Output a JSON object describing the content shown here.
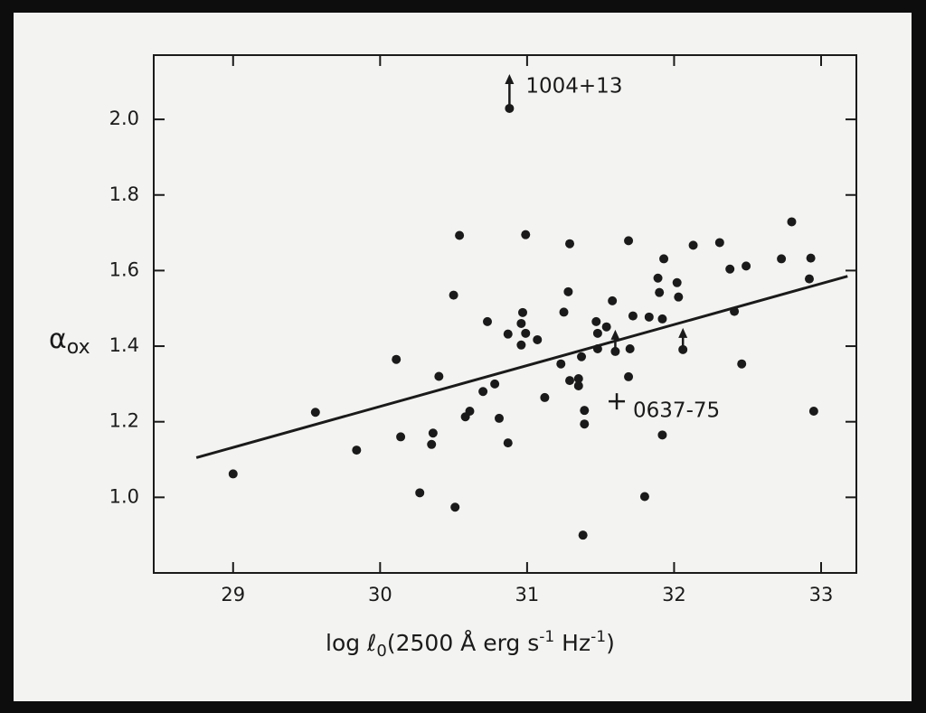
{
  "chart_data": {
    "type": "scatter",
    "ylabel": {
      "symbol": "α",
      "subscript": "ox"
    },
    "xlabel_parts": [
      "log ℓ",
      "0",
      "(2500 Å erg s",
      "-1",
      " Hz",
      "-1",
      ")"
    ],
    "xlim": [
      28.46,
      33.24
    ],
    "ylim": [
      0.8,
      2.17
    ],
    "xticks": [
      29,
      30,
      31,
      32,
      33
    ],
    "yticks": [
      {
        "value": 1.0,
        "label": "1.0"
      },
      1.2,
      1.4,
      1.6,
      1.8,
      {
        "value": 2.0,
        "label": "2.0"
      }
    ],
    "color": "#1a1a1a",
    "points": {
      "x": [
        29.0,
        29.56,
        29.84,
        30.11,
        30.14,
        30.27,
        30.35,
        30.36,
        30.4,
        30.5,
        30.51,
        30.54,
        30.58,
        30.61,
        30.7,
        30.73,
        30.78,
        30.81,
        30.87,
        30.87,
        30.97,
        30.96,
        30.96,
        30.99,
        30.99,
        31.07,
        31.12,
        31.23,
        31.25,
        31.28,
        31.29,
        31.29,
        31.35,
        31.35,
        31.37,
        31.39,
        31.39,
        31.38,
        31.47,
        31.48,
        31.48,
        31.54,
        31.58,
        31.69,
        31.69,
        31.7,
        31.72,
        31.8,
        31.83,
        31.89,
        31.9,
        31.92,
        31.92,
        31.93,
        32.02,
        32.03,
        32.13,
        32.31,
        32.38,
        32.41,
        32.46,
        32.49,
        32.73,
        32.8,
        32.93,
        32.92,
        32.95
      ],
      "y": [
        1.062,
        1.225,
        1.125,
        1.365,
        1.16,
        1.012,
        1.14,
        1.17,
        1.32,
        1.535,
        0.974,
        1.693,
        1.213,
        1.228,
        1.28,
        1.465,
        1.3,
        1.209,
        1.144,
        1.432,
        1.489,
        1.46,
        1.403,
        1.434,
        1.695,
        1.417,
        1.264,
        1.353,
        1.49,
        1.544,
        1.671,
        1.309,
        1.314,
        1.295,
        1.372,
        1.23,
        1.194,
        0.9,
        1.465,
        1.434,
        1.393,
        1.451,
        1.52,
        1.319,
        1.679,
        1.393,
        1.48,
        1.002,
        1.477,
        1.58,
        1.542,
        1.165,
        1.472,
        1.631,
        1.568,
        1.53,
        1.667,
        1.674,
        1.604,
        1.492,
        1.353,
        1.612,
        1.631,
        1.729,
        1.633,
        1.578,
        1.228
      ]
    },
    "lower_limits": {
      "x": [
        30.88,
        31.6,
        32.06
      ],
      "y": [
        2.029,
        1.386,
        1.391
      ],
      "labels": [
        "1004+13",
        null,
        null
      ]
    },
    "cross": {
      "x": 31.61,
      "y": 1.254,
      "label": "0637-75"
    },
    "fit_line": {
      "x": [
        28.75,
        33.18
      ],
      "y": [
        1.105,
        1.585
      ]
    }
  }
}
